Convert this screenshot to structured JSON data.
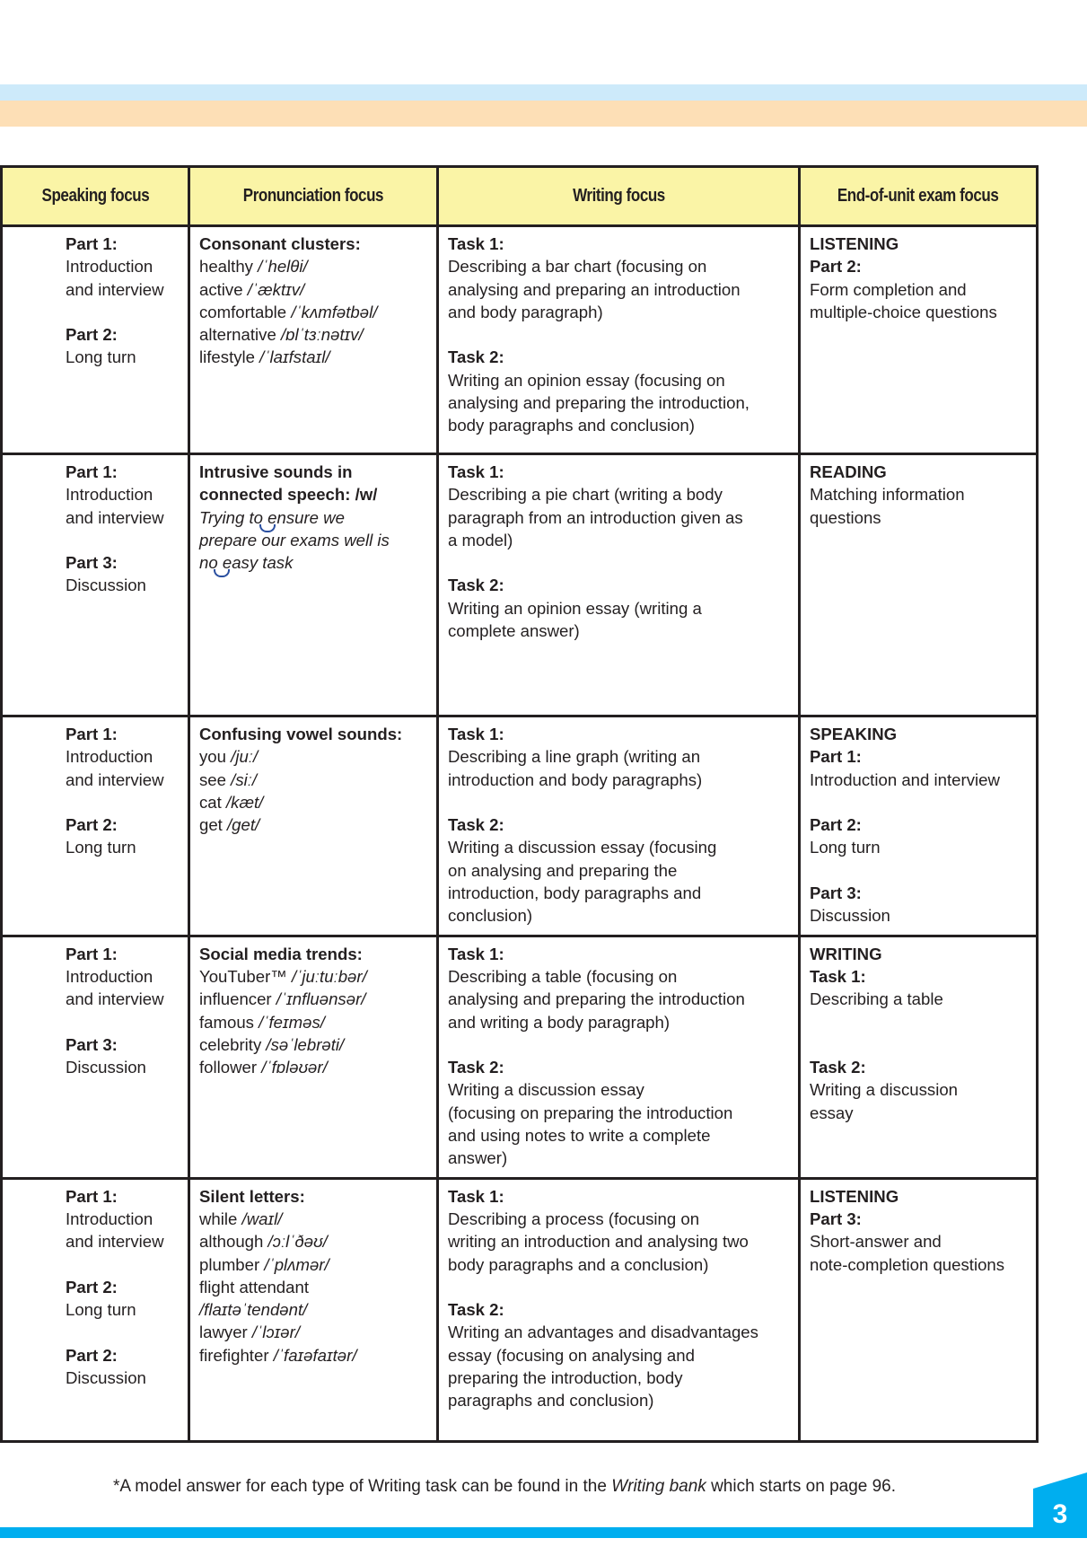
{
  "headers": [
    "Speaking focus",
    "Pronunciation focus",
    "Writing focus",
    "End-of-unit exam focus"
  ],
  "rows": [
    [
      [
        {
          "b": "Part 1:"
        },
        {
          "t": "Introduction"
        },
        {
          "t": "and interview"
        },
        {
          "t": ""
        },
        {
          "b": "Part 2:"
        },
        {
          "t": "Long turn"
        }
      ],
      [
        {
          "b": "Consonant clusters:"
        },
        {
          "t": "healthy ",
          "i": "/ˈhelθi/"
        },
        {
          "t": "active ",
          "i": "/ˈæktɪv/"
        },
        {
          "t": "comfortable ",
          "i": "/ˈkʌmfətbəl/"
        },
        {
          "t": "alternative ",
          "i": "/ɒlˈtɜːnətɪv/"
        },
        {
          "t": "lifestyle ",
          "i": "/ˈlaɪfstaɪl/"
        }
      ],
      [
        {
          "b": "Task 1:"
        },
        {
          "t": "Describing a bar chart (focusing on"
        },
        {
          "t": "analysing and preparing an introduction"
        },
        {
          "t": "and body paragraph)"
        },
        {
          "t": ""
        },
        {
          "b": "Task 2:"
        },
        {
          "t": "Writing an opinion essay (focusing on"
        },
        {
          "t": "analysing and preparing the introduction,"
        },
        {
          "t": "body paragraphs and conclusion)"
        }
      ],
      [
        {
          "b": "LISTENING"
        },
        {
          "b": "Part 2:"
        },
        {
          "t": "Form completion and"
        },
        {
          "t": "multiple-choice questions"
        }
      ]
    ],
    [
      [
        {
          "b": "Part 1:"
        },
        {
          "t": "Introduction"
        },
        {
          "t": "and interview"
        },
        {
          "t": ""
        },
        {
          "b": "Part 3:"
        },
        {
          "t": "Discussion"
        }
      ],
      [
        {
          "b": "Intrusive sounds in"
        },
        {
          "b": "connected speech: /w/"
        },
        {
          "i": "Trying t",
          "l": "o e",
          "i2": "nsure we"
        },
        {
          "i": "prepare our exams well is"
        },
        {
          "i": "n",
          "l": "o e",
          "i2": "asy task"
        }
      ],
      [
        {
          "b": "Task 1:"
        },
        {
          "t": "Describing a pie chart (writing a body"
        },
        {
          "t": "paragraph from an introduction given as"
        },
        {
          "t": "a model)"
        },
        {
          "t": ""
        },
        {
          "b": "Task 2:"
        },
        {
          "t": "Writing an opinion essay (writing a"
        },
        {
          "t": "complete answer)"
        }
      ],
      [
        {
          "b": "READING"
        },
        {
          "t": "Matching information"
        },
        {
          "t": "questions"
        }
      ]
    ],
    [
      [
        {
          "b": "Part 1:"
        },
        {
          "t": "Introduction"
        },
        {
          "t": "and interview"
        },
        {
          "t": ""
        },
        {
          "b": "Part 2:"
        },
        {
          "t": "Long turn"
        }
      ],
      [
        {
          "b": "Confusing vowel sounds:"
        },
        {
          "t": "you ",
          "i": "/juː/"
        },
        {
          "t": "see ",
          "i": "/siː/"
        },
        {
          "t": "cat ",
          "i": "/kæt/"
        },
        {
          "t": "get ",
          "i": "/get/"
        }
      ],
      [
        {
          "b": "Task 1:"
        },
        {
          "t": "Describing a line graph (writing an"
        },
        {
          "t": "introduction and body paragraphs)"
        },
        {
          "t": ""
        },
        {
          "b": "Task 2:"
        },
        {
          "t": "Writing a discussion essay (focusing"
        },
        {
          "t": "on analysing and preparing the"
        },
        {
          "t": "introduction, body paragraphs and"
        },
        {
          "t": "conclusion)"
        }
      ],
      [
        {
          "b": "SPEAKING"
        },
        {
          "b": "Part 1:"
        },
        {
          "t": "Introduction and interview"
        },
        {
          "t": ""
        },
        {
          "b": "Part 2:"
        },
        {
          "t": "Long turn"
        },
        {
          "t": ""
        },
        {
          "b": "Part 3:"
        },
        {
          "t": "Discussion"
        }
      ]
    ],
    [
      [
        {
          "b": "Part 1:"
        },
        {
          "t": "Introduction"
        },
        {
          "t": "and interview"
        },
        {
          "t": ""
        },
        {
          "b": "Part 3:"
        },
        {
          "t": "Discussion"
        }
      ],
      [
        {
          "b": "Social media trends:"
        },
        {
          "t": "YouTuber™ ",
          "i": "/ˈjuːtuːbər/"
        },
        {
          "t": "influencer ",
          "i": "/ˈɪnfluənsər/"
        },
        {
          "t": "famous ",
          "i": "/ˈfeɪməs/"
        },
        {
          "t": "celebrity ",
          "i": "/səˈlebrəti/"
        },
        {
          "t": "follower ",
          "i": "/ˈfɒləʊər/"
        }
      ],
      [
        {
          "b": "Task 1:"
        },
        {
          "t": "Describing a table (focusing on"
        },
        {
          "t": "analysing and preparing the  introduction"
        },
        {
          "t": "and writing a body paragraph)"
        },
        {
          "t": ""
        },
        {
          "b": "Task 2:"
        },
        {
          "t": "Writing a discussion essay"
        },
        {
          "t": "(focusing on preparing the introduction"
        },
        {
          "t": "and using notes to write a complete"
        },
        {
          "t": "answer)"
        }
      ],
      [
        {
          "b": "WRITING"
        },
        {
          "b": "Task 1:"
        },
        {
          "t": "Describing a table"
        },
        {
          "t": ""
        },
        {
          "t": ""
        },
        {
          "b": "Task 2:"
        },
        {
          "t": "Writing a discussion"
        },
        {
          "t": "essay"
        }
      ]
    ],
    [
      [
        {
          "b": "Part 1:"
        },
        {
          "t": "Introduction"
        },
        {
          "t": "and interview"
        },
        {
          "t": ""
        },
        {
          "b": "Part 2:"
        },
        {
          "t": "Long turn"
        },
        {
          "t": ""
        },
        {
          "b": "Part 2:"
        },
        {
          "t": "Discussion"
        }
      ],
      [
        {
          "b": "Silent letters:"
        },
        {
          "t": "while ",
          "i": "/waɪl/"
        },
        {
          "t": "although ",
          "i": "/ɔːlˈðəʊ/"
        },
        {
          "t": "plumber ",
          "i": "/ˈplʌmər/"
        },
        {
          "t": "flight attendant"
        },
        {
          "i": "/flaɪtəˈtendənt/"
        },
        {
          "t": "lawyer ",
          "i": "/ˈlɔɪər/"
        },
        {
          "t": "firefighter ",
          "i": "/ˈfaɪəfaɪtər/"
        }
      ],
      [
        {
          "b": "Task 1:"
        },
        {
          "t": "Describing a process (focusing on"
        },
        {
          "t": "writing an introduction and analysing two"
        },
        {
          "t": "body paragraphs and a conclusion)"
        },
        {
          "t": ""
        },
        {
          "b": "Task 2:"
        },
        {
          "t": "Writing an advantages and disadvantages"
        },
        {
          "t": "essay (focusing on analysing and"
        },
        {
          "t": "preparing the introduction, body"
        },
        {
          "t": "paragraphs and conclusion)"
        }
      ],
      [
        {
          "b": "LISTENING"
        },
        {
          "b": "Part 3:"
        },
        {
          "t": "Short-answer and"
        },
        {
          "t": "note-completion questions"
        }
      ]
    ]
  ],
  "footnote": {
    "before": "*A model answer for each type of Writing task can be found in the ",
    "italic": "Writing bank",
    "after": " which starts on page 96."
  },
  "page_number": "3",
  "colors": {
    "header_bg": "#faf4a6",
    "band_blue": "#cdeafa",
    "band_orange": "#fddfb6",
    "accent": "#00aeef",
    "linking_mark": "#2a4fa0"
  }
}
